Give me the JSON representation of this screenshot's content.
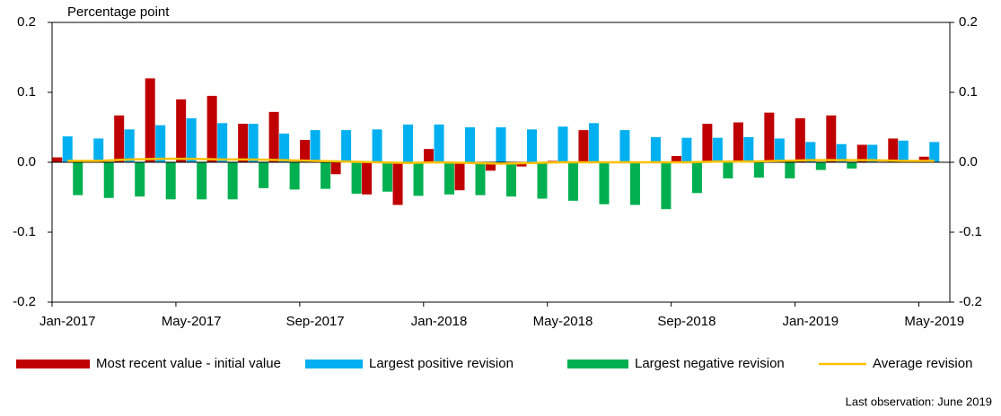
{
  "chart_data": {
    "type": "bar",
    "y_label": "Percentage point",
    "note": "Last observation: June 2019",
    "categories": [
      "Jan-2017",
      null,
      null,
      null,
      "May-2017",
      null,
      null,
      null,
      "Sep-2017",
      null,
      null,
      null,
      "Jan-2018",
      null,
      null,
      null,
      "May-2018",
      null,
      null,
      null,
      "Sep-2018",
      null,
      null,
      null,
      "Jan-2019",
      null,
      null,
      null,
      "May-2019"
    ],
    "series": [
      {
        "name": "Most recent value - initial value",
        "type": "bar",
        "color": "#c00000",
        "values": [
          0.007,
          0,
          0.067,
          0.12,
          0.09,
          0.095,
          0.055,
          0.072,
          0.032,
          -0.017,
          -0.046,
          -0.061,
          0.019,
          -0.04,
          -0.012,
          -0.006,
          0.002,
          0.046,
          0,
          0,
          0.009,
          0.055,
          0.057,
          0.071,
          0.063,
          0.067,
          0.025,
          0.034,
          0.008
        ]
      },
      {
        "name": "Largest positive revision",
        "type": "bar",
        "color": "#00b0f0",
        "values": [
          0.037,
          0.034,
          0.047,
          0.053,
          0.063,
          0.056,
          0.055,
          0.041,
          0.046,
          0.046,
          0.047,
          0.054,
          0.054,
          0.05,
          0.05,
          0.047,
          0.051,
          0.056,
          0.046,
          0.036,
          0.035,
          0.035,
          0.036,
          0.034,
          0.029,
          0.026,
          0.025,
          0.031,
          0.029
        ]
      },
      {
        "name": "Largest negative revision",
        "type": "bar",
        "color": "#00b050",
        "values": [
          -0.047,
          -0.051,
          -0.049,
          -0.053,
          -0.053,
          -0.053,
          -0.037,
          -0.039,
          -0.038,
          -0.045,
          -0.042,
          -0.048,
          -0.046,
          -0.047,
          -0.049,
          -0.052,
          -0.055,
          -0.06,
          -0.061,
          -0.067,
          -0.044,
          -0.023,
          -0.022,
          -0.023,
          -0.011,
          -0.009,
          0,
          0,
          0
        ]
      },
      {
        "name": "Average revision",
        "type": "line",
        "color": "#ffc000",
        "values": [
          0.002,
          0.002,
          0.004,
          0.005,
          0.005,
          0.004,
          0.004,
          0.003,
          0.002,
          0.001,
          0,
          -0.001,
          0,
          -0.001,
          -0.002,
          -0.001,
          0,
          0,
          0,
          0,
          0,
          0.001,
          0.001,
          0.002,
          0.003,
          0.003,
          0.003,
          0.002,
          0.002
        ]
      }
    ],
    "ylim": [
      -0.2,
      0.2
    ],
    "yticks": [
      -0.2,
      -0.1,
      {
        "value": 0,
        "label": "0.0"
      },
      0.1,
      0.2
    ],
    "y2lim": [
      -0.2,
      0.2
    ],
    "y2ticks": [
      -0.2,
      -0.1,
      {
        "value": 0,
        "label": "0.0"
      },
      0.1,
      0.2
    ],
    "grid": false,
    "legend": "bottom"
  }
}
